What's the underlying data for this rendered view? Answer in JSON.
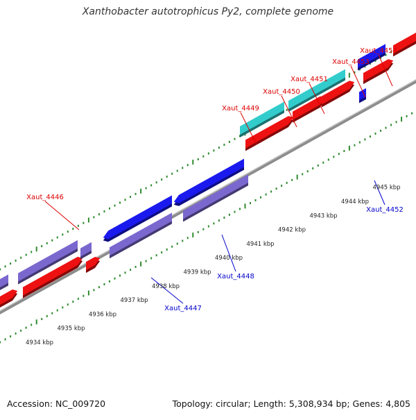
{
  "title": "Xanthobacter autotrophicus Py2, complete genome",
  "accession_text": "Accession: NC_009720",
  "summary_text": "Topology: circular; Length: 5,308,934 bp; Genes: 4,805",
  "colors": {
    "backbone": "#8c8c8c",
    "tick": "#2e8b2e",
    "minus_strand": "#7b68cf",
    "plus_strand": "#ee1111",
    "rna_like": "#33cccc",
    "blue": "#1a1aee",
    "label_red": "#dd0000",
    "label_blue": "#0000cc"
  },
  "kbp_labels": [
    "4934 kbp",
    "4935 kbp",
    "4936 kbp",
    "4937 kbp",
    "4938 kbp",
    "4939 kbp",
    "4940 kbp",
    "4941 kbp",
    "4942 kbp",
    "4943 kbp",
    "4944 kbp",
    "4945 kbp"
  ],
  "gene_labels": [
    {
      "text": "Xaut_4454",
      "color": "label_red"
    },
    {
      "text": "Xaut_4453",
      "color": "label_red"
    },
    {
      "text": "Xaut_4451",
      "color": "label_red"
    },
    {
      "text": "Xaut_4450",
      "color": "label_red"
    },
    {
      "text": "Xaut_4449",
      "color": "label_red"
    },
    {
      "text": "Xaut_4446",
      "color": "label_red"
    },
    {
      "text": "Xaut_4452",
      "color": "label_blue"
    },
    {
      "text": "Xaut_4448",
      "color": "label_blue"
    },
    {
      "text": "Xaut_4447",
      "color": "label_blue"
    }
  ]
}
